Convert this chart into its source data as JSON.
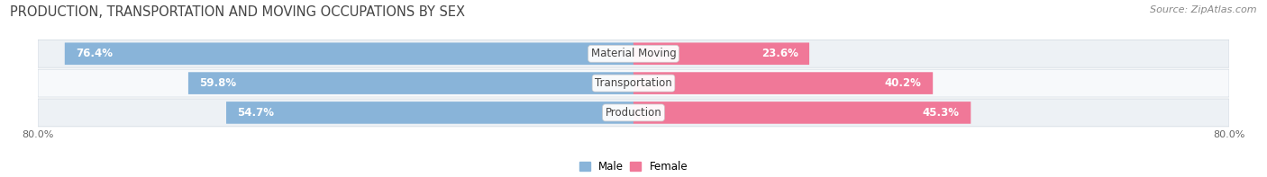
{
  "title": "PRODUCTION, TRANSPORTATION AND MOVING OCCUPATIONS BY SEX",
  "source_text": "Source: ZipAtlas.com",
  "categories": [
    "Material Moving",
    "Transportation",
    "Production"
  ],
  "male_values": [
    76.4,
    59.8,
    54.7
  ],
  "female_values": [
    23.6,
    40.2,
    45.3
  ],
  "male_color": "#89b4d9",
  "female_color": "#f07898",
  "male_color_light": "#b8d0e8",
  "female_color_light": "#f5aabf",
  "axis_min": -80.0,
  "axis_max": 80.0,
  "bar_height": 0.72,
  "background_color": "#ffffff",
  "row_bg_odd": "#edf1f5",
  "row_bg_even": "#f7f9fb",
  "title_fontsize": 10.5,
  "source_fontsize": 8,
  "label_fontsize": 8.5,
  "value_fontsize": 8.5
}
